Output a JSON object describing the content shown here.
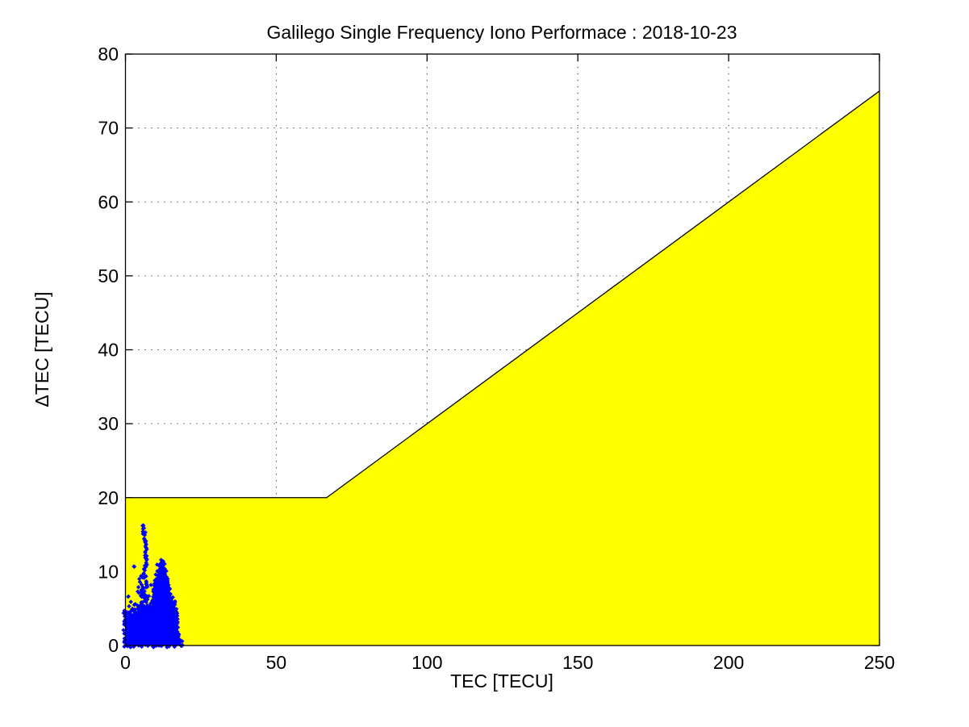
{
  "chart_data": {
    "type": "scatter",
    "title": "Galilego Single Frequency Iono Performace : 2018-10-23",
    "xlabel": "TEC [TECU]",
    "ylabel": "ΔTEC [TECU]",
    "xlim": [
      0,
      250
    ],
    "ylim": [
      0,
      80
    ],
    "xticks": [
      0,
      50,
      100,
      150,
      200,
      250
    ],
    "yticks": [
      0,
      10,
      20,
      30,
      40,
      50,
      60,
      70,
      80
    ],
    "grid": {
      "visible": true,
      "style": "dotted",
      "color": "#000000"
    },
    "envelope": {
      "fill_color": "#ffff00",
      "edge_color": "#000000",
      "boundary_points": [
        [
          0,
          20
        ],
        [
          66.7,
          20
        ],
        [
          250,
          75
        ]
      ],
      "filled_to_y": 0
    },
    "scatter": {
      "color": "#0000ff",
      "marker": "diamond",
      "marker_px": 5,
      "x_extent": [
        0,
        18.7
      ],
      "y_extent": [
        0,
        16.5
      ],
      "dense_region_polygon": [
        [
          0,
          0
        ],
        [
          0,
          4.6
        ],
        [
          0.6,
          4.3
        ],
        [
          1.0,
          4.6
        ],
        [
          1.5,
          3.9
        ],
        [
          2.3,
          4.2
        ],
        [
          3.0,
          5.1
        ],
        [
          3.6,
          4.4
        ],
        [
          4.3,
          5.2
        ],
        [
          5.0,
          4.7
        ],
        [
          5.6,
          5.6
        ],
        [
          6.3,
          5.0
        ],
        [
          7.2,
          4.6
        ],
        [
          8.0,
          4.8
        ],
        [
          8.8,
          5.5
        ],
        [
          9.3,
          6.5
        ],
        [
          9.7,
          7.7
        ],
        [
          10.2,
          9.0
        ],
        [
          10.7,
          10.1
        ],
        [
          11.2,
          11.0
        ],
        [
          11.7,
          11.5
        ],
        [
          12.3,
          11.3
        ],
        [
          12.8,
          10.5
        ],
        [
          13.4,
          9.6
        ],
        [
          14.0,
          8.5
        ],
        [
          14.7,
          7.4
        ],
        [
          15.4,
          6.5
        ],
        [
          16.3,
          5.7
        ],
        [
          16.8,
          4.8
        ],
        [
          16.6,
          3.9
        ],
        [
          17.0,
          3.2
        ],
        [
          16.7,
          2.4
        ],
        [
          17.3,
          1.8
        ],
        [
          17.6,
          1.1
        ],
        [
          18.3,
          0.6
        ],
        [
          18.7,
          0
        ]
      ],
      "spike_path": [
        [
          6.3,
          4.8
        ],
        [
          5.9,
          5.4
        ],
        [
          6.6,
          6.0
        ],
        [
          6.2,
          6.8
        ],
        [
          5.6,
          7.2
        ],
        [
          6.0,
          7.9
        ],
        [
          6.6,
          8.4
        ],
        [
          6.4,
          9.2
        ],
        [
          6.1,
          9.9
        ],
        [
          6.6,
          10.5
        ],
        [
          7.0,
          11.1
        ],
        [
          6.8,
          11.9
        ],
        [
          6.5,
          12.5
        ],
        [
          6.8,
          13.3
        ],
        [
          6.4,
          14.0
        ],
        [
          6.1,
          14.6
        ],
        [
          6.3,
          15.3
        ],
        [
          5.9,
          15.9
        ],
        [
          5.7,
          16.5
        ]
      ],
      "outlier_points": [
        [
          2.8,
          10.7
        ],
        [
          4.6,
          9.0
        ],
        [
          4.1,
          7.3
        ],
        [
          0.9,
          6.6
        ],
        [
          1.8,
          5.9
        ],
        [
          3.3,
          5.6
        ],
        [
          4.8,
          8.6
        ],
        [
          5.2,
          9.4
        ],
        [
          2.2,
          4.9
        ],
        [
          1.2,
          5.3
        ]
      ]
    }
  }
}
